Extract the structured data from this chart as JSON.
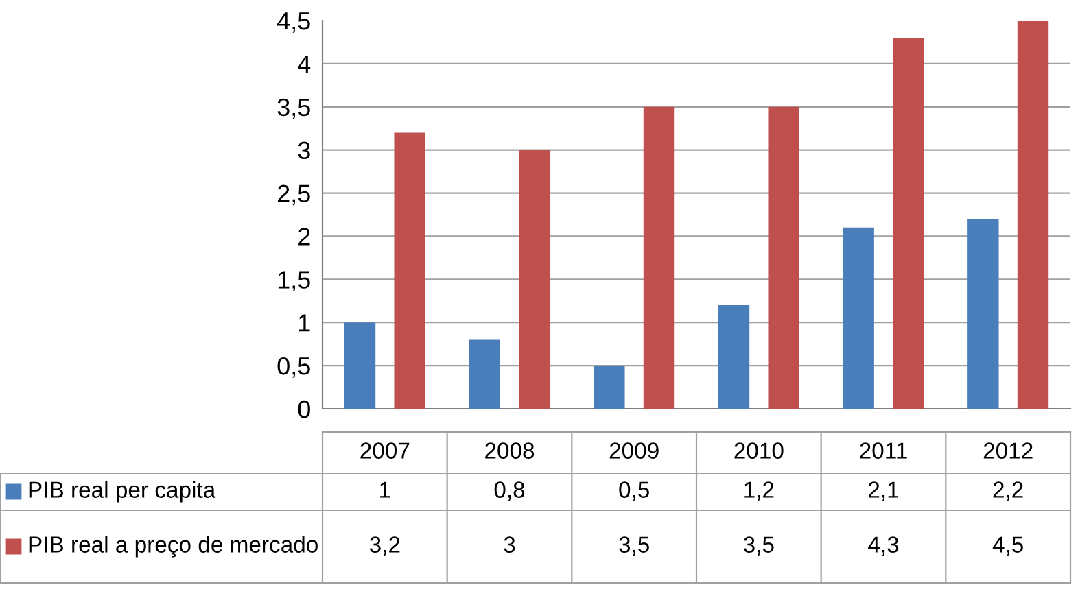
{
  "chart_data": {
    "type": "bar",
    "categories": [
      "2007",
      "2008",
      "2009",
      "2010",
      "2011",
      "2012"
    ],
    "series": [
      {
        "name": "PIB real per capita",
        "color": "#4a7ebb",
        "values": [
          1,
          0.8,
          0.5,
          1.2,
          2.1,
          2.2
        ],
        "value_labels": [
          "1",
          "0,8",
          "0,5",
          "1,2",
          "2,1",
          "2,2"
        ]
      },
      {
        "name": "PIB real a preço de mercado",
        "color": "#c0504d",
        "values": [
          3.2,
          3,
          3.5,
          3.5,
          4.3,
          4.5
        ],
        "value_labels": [
          "3,2",
          "3",
          "3,5",
          "3,5",
          "4,3",
          "4,5"
        ]
      }
    ],
    "ylim": [
      0,
      4.5
    ],
    "yticks": [
      0,
      {
        "value": 0.5,
        "label": "0,5"
      },
      1,
      {
        "value": 1.5,
        "label": "1,5"
      },
      2,
      {
        "value": 2.5,
        "label": "2,5"
      },
      3,
      {
        "value": 3.5,
        "label": "3,5"
      },
      4,
      {
        "value": 4.5,
        "label": "4,5"
      }
    ],
    "grid": "y",
    "legend": "bottom"
  }
}
